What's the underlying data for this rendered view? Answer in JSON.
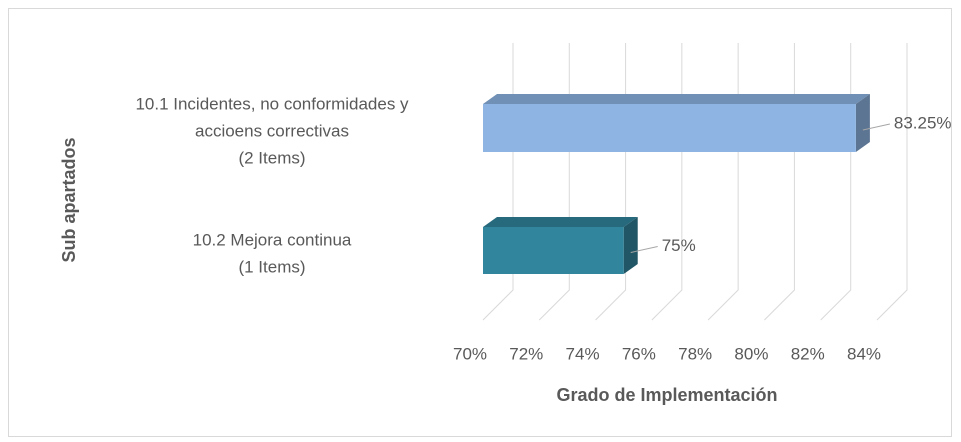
{
  "chart_data": {
    "type": "bar3d_horizontal",
    "categories": [
      [
        "10.1 Incidentes, no conformidades y",
        "accioens correctivas",
        "(2 Items)"
      ],
      [
        "10.2 Mejora continua",
        "(1 Items)"
      ]
    ],
    "values": [
      83.25,
      75
    ],
    "value_labels": [
      "83.25%",
      "75%"
    ],
    "colors": [
      "#8db4e2",
      "#31859c"
    ],
    "xlim": [
      70,
      84
    ],
    "xticks": [
      {
        "value": 70,
        "label": "70%"
      },
      {
        "value": 72,
        "label": "72%"
      },
      {
        "value": 74,
        "label": "74%"
      },
      {
        "value": 76,
        "label": "76%"
      },
      {
        "value": 78,
        "label": "78%"
      },
      {
        "value": 80,
        "label": "80%"
      },
      {
        "value": 82,
        "label": "82%"
      },
      {
        "value": 84,
        "label": "84%"
      }
    ],
    "xlabel": "Grado de Implementación",
    "ylabel": "Sub apartados",
    "grid": true
  }
}
